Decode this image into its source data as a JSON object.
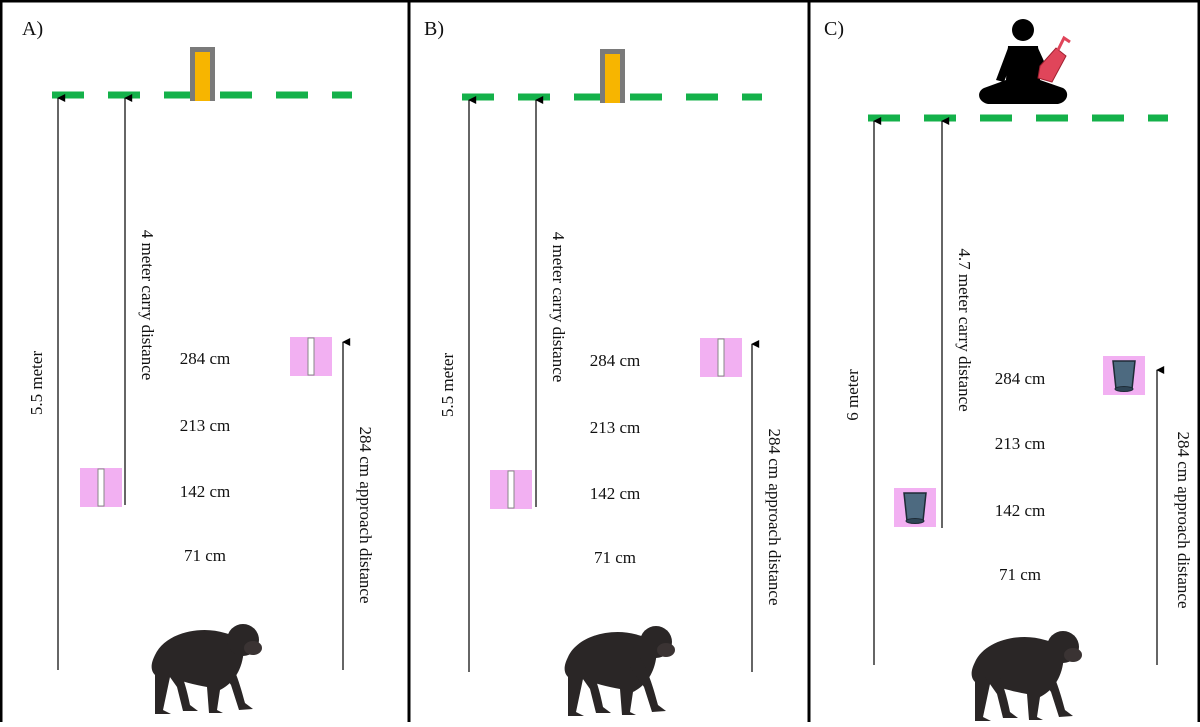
{
  "panels": [
    {
      "label": "A)",
      "total_distance": "5.5 meter",
      "carry_distance": "4 meter carry distance",
      "approach_distance": "284 cm approach distance",
      "markers": [
        "284 cm",
        "213 cm",
        "142 cm",
        "71 cm"
      ]
    },
    {
      "label": "B)",
      "total_distance": "5.5 meter",
      "carry_distance": "4 meter carry distance",
      "approach_distance": "284 cm approach distance",
      "markers": [
        "284 cm",
        "213 cm",
        "142 cm",
        "71 cm"
      ]
    },
    {
      "label": "C)",
      "total_distance": "6 meter",
      "carry_distance": "4.7 meter carry distance",
      "approach_distance": "284 cm approach distance",
      "markers": [
        "284 cm",
        "213 cm",
        "142 cm",
        "71 cm"
      ]
    }
  ]
}
